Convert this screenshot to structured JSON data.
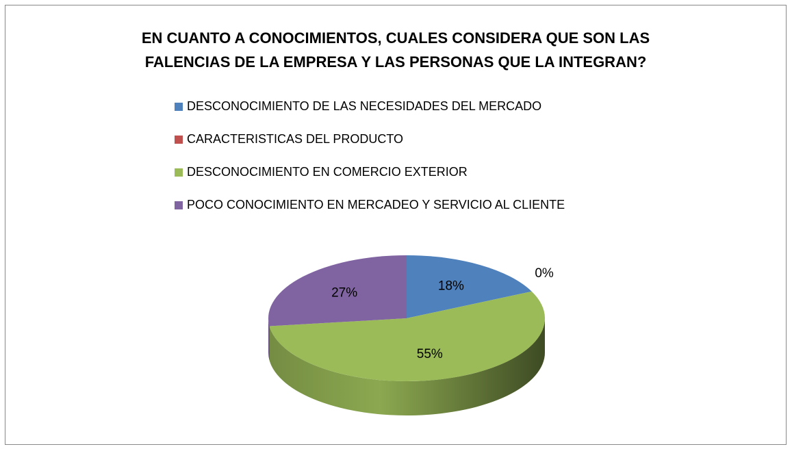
{
  "chart_data": {
    "type": "pie",
    "title": [
      "EN CUANTO A CONOCIMIENTOS, CUALES CONSIDERA QUE SON LAS",
      "FALENCIAS DE LA EMPRESA Y LAS PERSONAS QUE LA INTEGRAN?"
    ],
    "categories": [
      "DESCONOCIMIENTO DE LAS NECESIDADES DEL MERCADO",
      "CARACTERISTICAS DEL PRODUCTO",
      "DESCONOCIMIENTO EN COMERCIO EXTERIOR",
      "POCO CONOCIMIENTO EN MERCADEO Y SERVICIO AL CLIENTE"
    ],
    "values": [
      18,
      0,
      55,
      27
    ],
    "value_labels": [
      "18%",
      "0%",
      "55%",
      "27%"
    ],
    "colors": [
      "#4f81bd",
      "#c0504d",
      "#9bbb59",
      "#8064a2"
    ],
    "legend": "top"
  }
}
